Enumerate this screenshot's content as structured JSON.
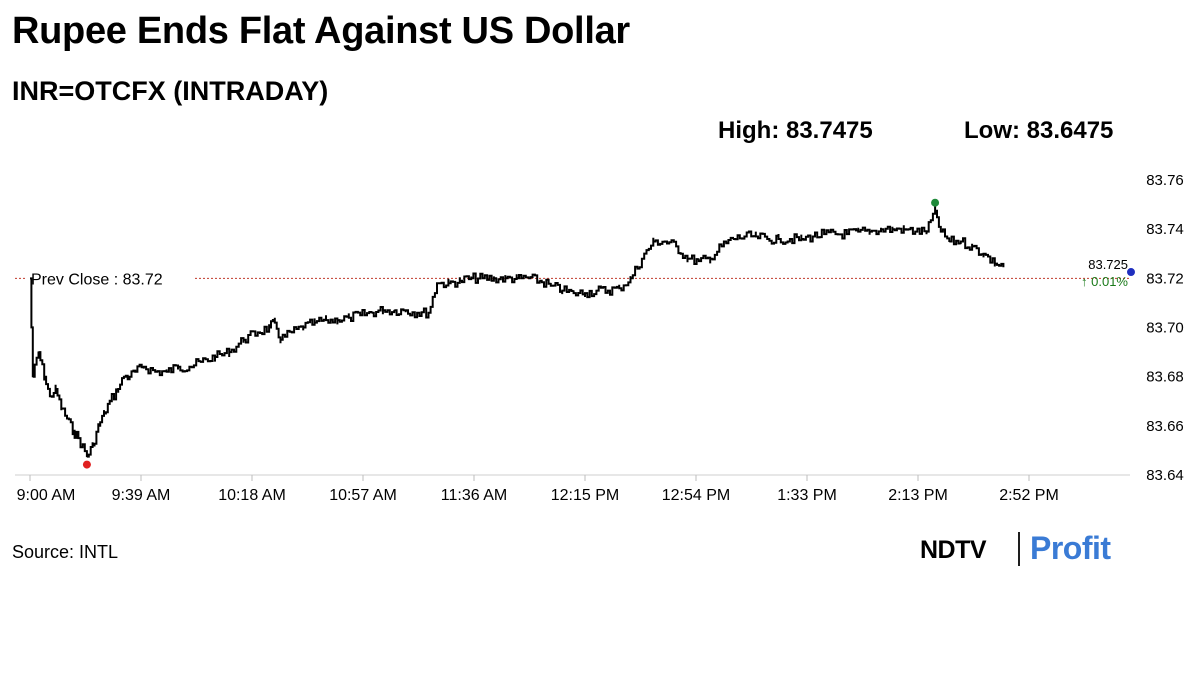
{
  "header": {
    "title": "Rupee Ends Flat Against US Dollar",
    "subtitle": "INR=OTCFX (INTRADAY)",
    "high_label": "High: 83.7475",
    "low_label": "Low: 83.6475"
  },
  "footer": {
    "source": "Source: INTL",
    "brand_ndtv": "NDTV",
    "brand_profit": "Profit"
  },
  "colors": {
    "line": "#000000",
    "prev_close_line": "#c0392b",
    "low_marker": "#e02020",
    "high_marker": "#1f8a3a",
    "last_marker": "#1f2fbf",
    "change_positive": "#1a7a1a",
    "brand_profit": "#3a7bd5"
  },
  "chart_data": {
    "type": "line",
    "title": "INR=OTCFX (INTRADAY)",
    "x_unit": "minutes after 9:00 AM",
    "x_tick_labels": [
      "9:00 AM",
      "9:39 AM",
      "10:18 AM",
      "10:57 AM",
      "11:36 AM",
      "12:15 PM",
      "12:54 PM",
      "1:33 PM",
      "2:13 PM",
      "2:52 PM"
    ],
    "y_ticks": [
      "83.76",
      "83.74",
      "83.72",
      "83.70",
      "83.68",
      "83.66",
      "83.64"
    ],
    "ylim": [
      83.64,
      83.76
    ],
    "grid": false,
    "prev_close": {
      "label": "Prev Close : 83.72",
      "value": 83.72
    },
    "last": {
      "value": 83.725,
      "label": "83.725",
      "change_label": "↑ 0.01%"
    },
    "high": 83.7475,
    "low": 83.6475,
    "series": [
      {
        "values": [
          [
            0,
            83.72
          ],
          [
            1,
            83.68
          ],
          [
            3,
            83.69
          ],
          [
            5,
            83.68
          ],
          [
            7,
            83.672
          ],
          [
            9,
            83.675
          ],
          [
            11,
            83.667
          ],
          [
            13,
            83.663
          ],
          [
            15,
            83.658
          ],
          [
            17,
            83.655
          ],
          [
            20,
            83.6475
          ],
          [
            22,
            83.652
          ],
          [
            24,
            83.66
          ],
          [
            26,
            83.665
          ],
          [
            28,
            83.67
          ],
          [
            31,
            83.675
          ],
          [
            33,
            83.68
          ],
          [
            35,
            83.68
          ],
          [
            37,
            83.682
          ],
          [
            40,
            83.684
          ],
          [
            44,
            83.682
          ],
          [
            48,
            83.682
          ],
          [
            52,
            83.684
          ],
          [
            56,
            83.684
          ],
          [
            60,
            83.686
          ],
          [
            65,
            83.688
          ],
          [
            70,
            83.69
          ],
          [
            75,
            83.695
          ],
          [
            80,
            83.698
          ],
          [
            84,
            83.7
          ],
          [
            86,
            83.702
          ],
          [
            88,
            83.695
          ],
          [
            92,
            83.698
          ],
          [
            96,
            83.7
          ],
          [
            100,
            83.702
          ],
          [
            104,
            83.703
          ],
          [
            108,
            83.703
          ],
          [
            112,
            83.704
          ],
          [
            116,
            83.705
          ],
          [
            120,
            83.706
          ],
          [
            124,
            83.707
          ],
          [
            128,
            83.707
          ],
          [
            132,
            83.707
          ],
          [
            136,
            83.706
          ],
          [
            140,
            83.706
          ],
          [
            143,
            83.718
          ],
          [
            147,
            83.718
          ],
          [
            151,
            83.719
          ],
          [
            155,
            83.72
          ],
          [
            159,
            83.72
          ],
          [
            163,
            83.72
          ],
          [
            167,
            83.72
          ],
          [
            171,
            83.72
          ],
          [
            175,
            83.72
          ],
          [
            179,
            83.719
          ],
          [
            183,
            83.717
          ],
          [
            187,
            83.715
          ],
          [
            191,
            83.714
          ],
          [
            195,
            83.714
          ],
          [
            199,
            83.715
          ],
          [
            203,
            83.715
          ],
          [
            207,
            83.716
          ],
          [
            211,
            83.72
          ],
          [
            215,
            83.728
          ],
          [
            219,
            83.735
          ],
          [
            223,
            83.735
          ],
          [
            227,
            83.733
          ],
          [
            231,
            83.728
          ],
          [
            235,
            83.727
          ],
          [
            239,
            83.728
          ],
          [
            243,
            83.733
          ],
          [
            247,
            83.736
          ],
          [
            251,
            83.737
          ],
          [
            255,
            83.737
          ],
          [
            259,
            83.736
          ],
          [
            263,
            83.736
          ],
          [
            267,
            83.736
          ],
          [
            271,
            83.736
          ],
          [
            275,
            83.737
          ],
          [
            279,
            83.738
          ],
          [
            283,
            83.738
          ],
          [
            287,
            83.738
          ],
          [
            291,
            83.739
          ],
          [
            295,
            83.739
          ],
          [
            299,
            83.74
          ],
          [
            303,
            83.74
          ],
          [
            307,
            83.74
          ],
          [
            311,
            83.739
          ],
          [
            315,
            83.739
          ],
          [
            318,
            83.7475
          ],
          [
            320,
            83.739
          ],
          [
            323,
            83.735
          ],
          [
            327,
            83.735
          ],
          [
            331,
            83.733
          ],
          [
            335,
            83.73
          ],
          [
            339,
            83.726
          ],
          [
            342,
            83.725
          ]
        ]
      }
    ]
  }
}
